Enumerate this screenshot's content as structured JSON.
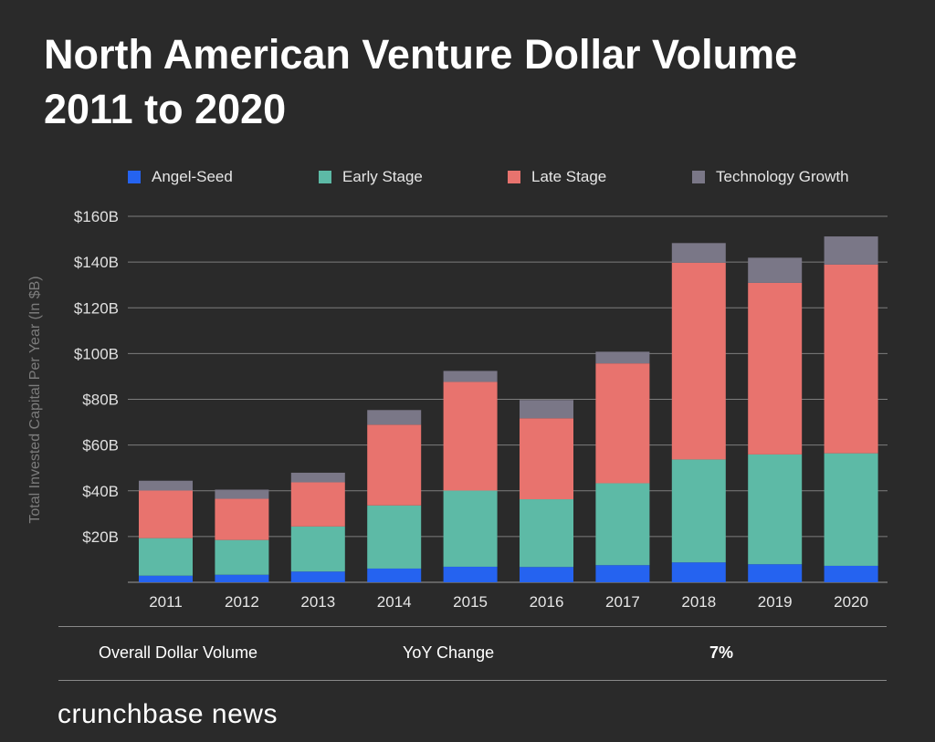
{
  "title_line1": "North American Venture Dollar Volume",
  "title_line2": "2011 to 2020",
  "chart_data": {
    "type": "bar",
    "stacked": true,
    "title": "North American Venture Dollar Volume 2011 to 2020",
    "xlabel": "",
    "ylabel": "Total Invested Capital Per Year (In $B)",
    "ylim": [
      0,
      160
    ],
    "yticks": [
      20,
      40,
      60,
      80,
      100,
      120,
      140,
      160
    ],
    "ytick_labels": [
      "$20B",
      "$40B",
      "$60B",
      "$80B",
      "$100B",
      "$120B",
      "$140B",
      "$160B"
    ],
    "grid": true,
    "legend_position": "top",
    "categories": [
      "2011",
      "2012",
      "2013",
      "2014",
      "2015",
      "2016",
      "2017",
      "2018",
      "2019",
      "2020"
    ],
    "series": [
      {
        "name": "Angel-Seed",
        "color": "#2563f0",
        "values": [
          2.9,
          3.3,
          4.7,
          6.0,
          6.8,
          6.7,
          7.5,
          8.7,
          7.9,
          7.2
        ]
      },
      {
        "name": "Early Stage",
        "color": "#5dbaa6",
        "values": [
          16.4,
          15.2,
          19.7,
          27.6,
          33.3,
          29.6,
          35.8,
          45.0,
          48.0,
          49.2
        ]
      },
      {
        "name": "Late Stage",
        "color": "#e8736e",
        "values": [
          20.8,
          18.0,
          19.3,
          35.3,
          47.5,
          35.4,
          52.4,
          86.0,
          75.0,
          82.5
        ]
      },
      {
        "name": "Technology Growth",
        "color": "#7a7787",
        "values": [
          4.3,
          4.0,
          4.2,
          6.4,
          4.8,
          8.0,
          5.1,
          8.6,
          11.0,
          12.3
        ]
      }
    ]
  },
  "summary": {
    "label": "Overall Dollar Volume",
    "yoy_label": "YoY Change",
    "yoy_value": "7%"
  },
  "brand": "crunchbase news"
}
